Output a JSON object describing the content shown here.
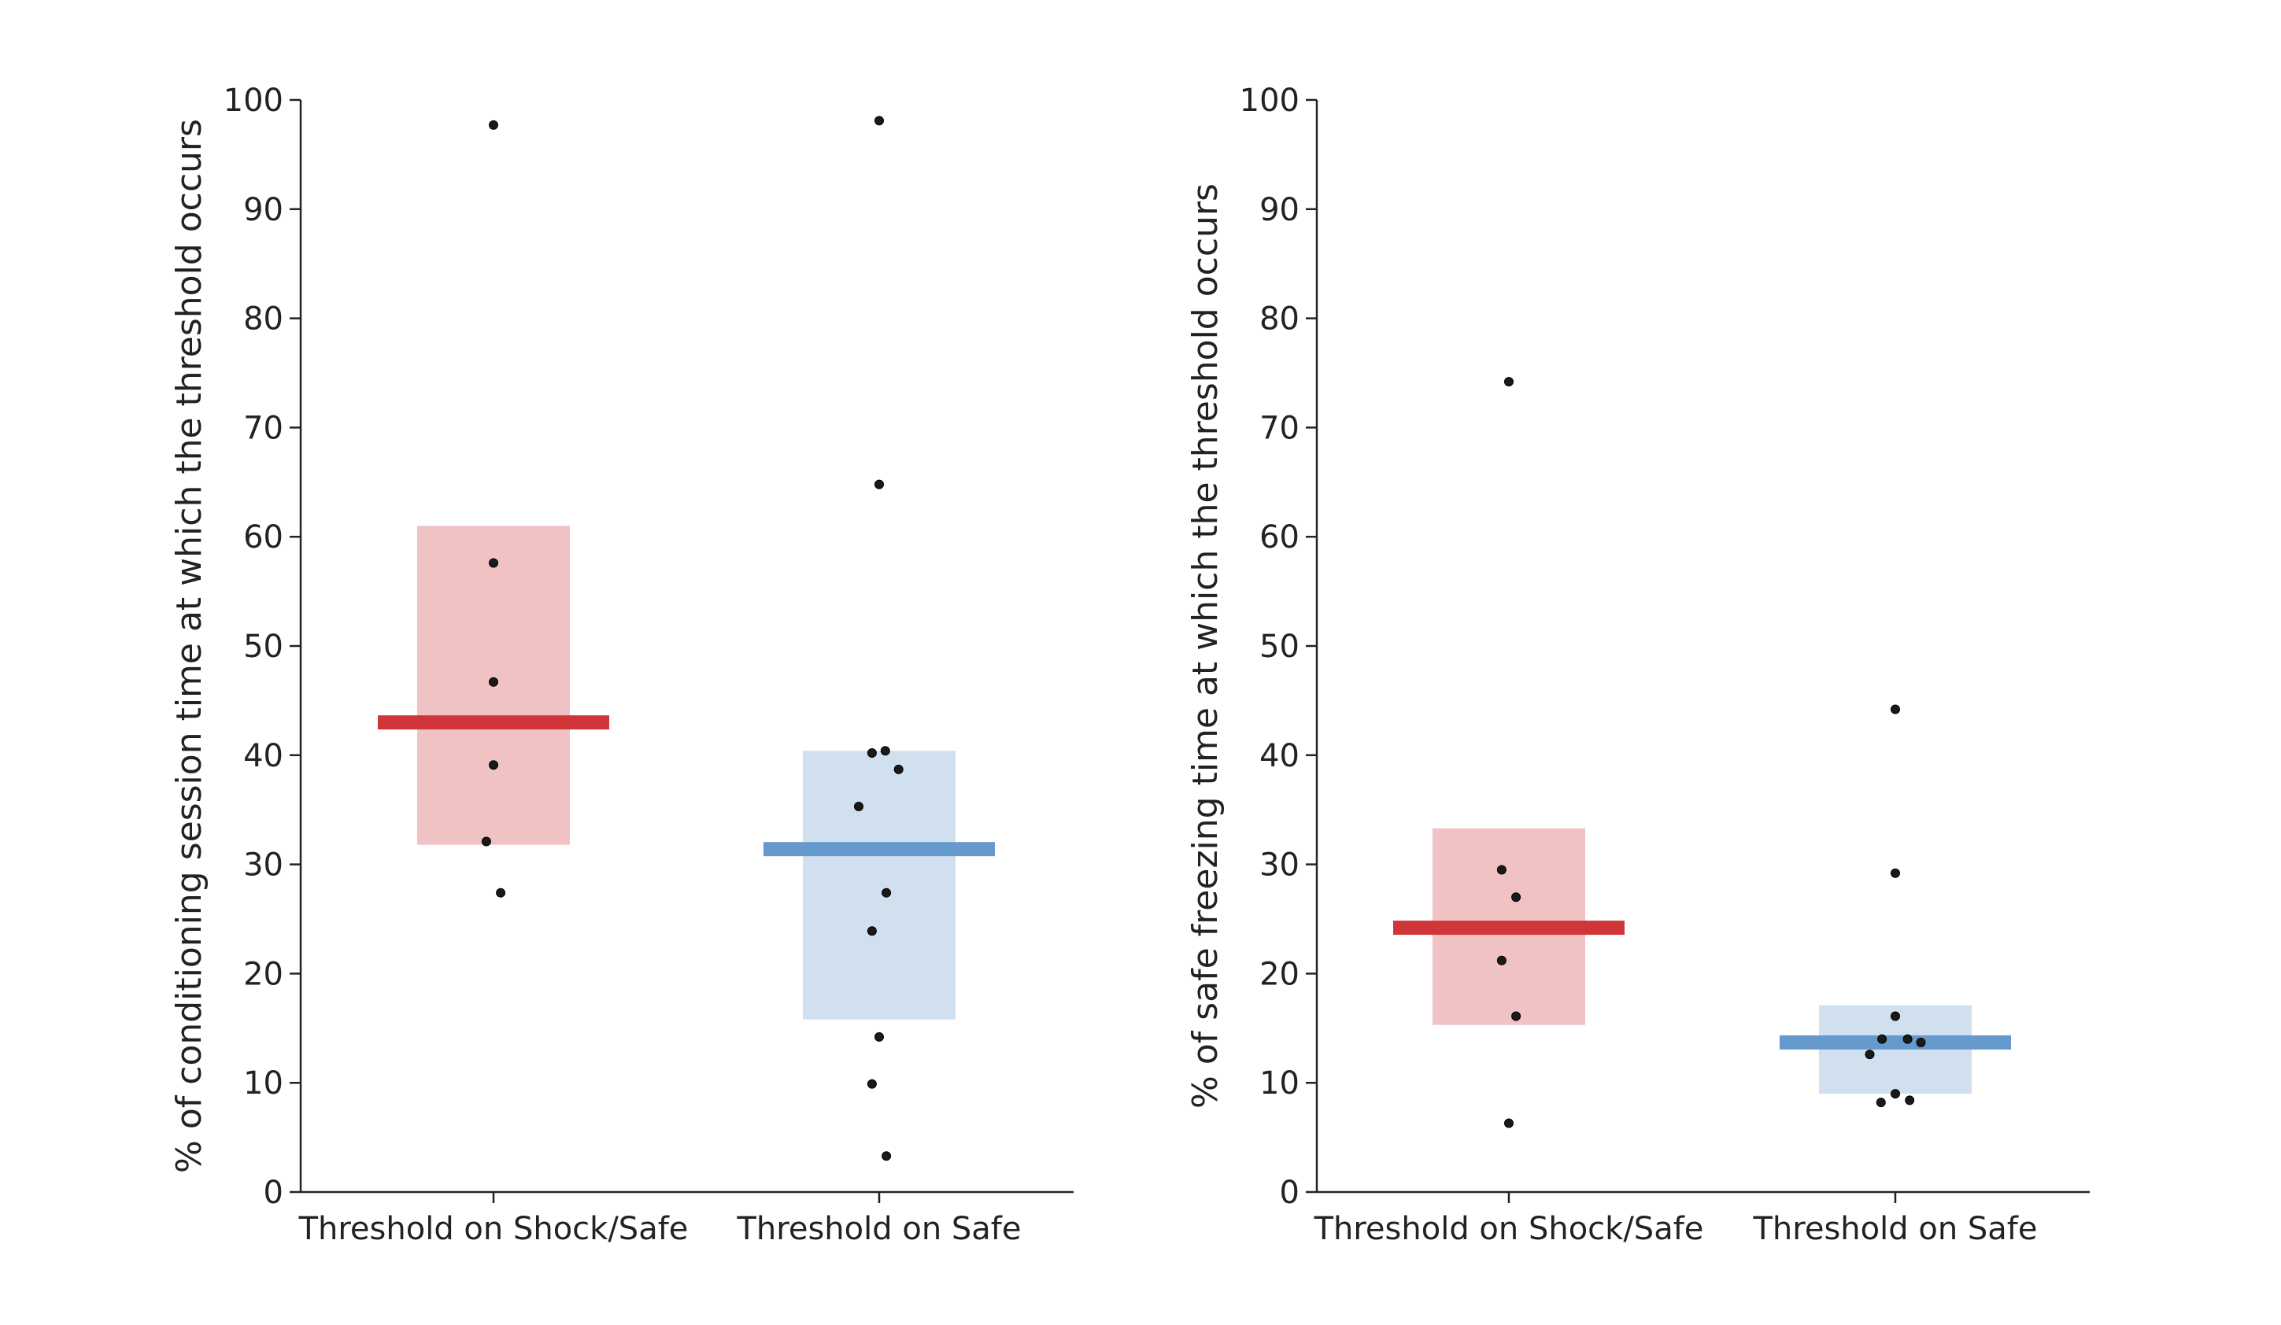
{
  "colors": {
    "shock_safe_mean": "#d0353a",
    "shock_safe_box": "#f0c2c3",
    "safe_mean": "#6699cc",
    "safe_box": "#d0e0ef",
    "point": "#1a1a1a",
    "axis": "#222222"
  },
  "chart_data": [
    {
      "type": "scatter",
      "title": "",
      "xlabel": "",
      "ylabel": "% of conditioning session time at which the threshold occurs",
      "ylim": [
        0,
        100
      ],
      "yticks": [
        0,
        10,
        20,
        30,
        40,
        50,
        60,
        70,
        80,
        90,
        100
      ],
      "ytick_labels": [
        "0",
        "10",
        "20",
        "30",
        "40",
        "50",
        "60",
        "70",
        "80",
        "90",
        "100"
      ],
      "categories": [
        "Threshold on Shock/Safe",
        "Threshold on Safe"
      ],
      "groups": [
        {
          "category": "Threshold on Shock/Safe",
          "color": "shock_safe",
          "mean": 43.0,
          "box": [
            31.8,
            61.0
          ],
          "points": [
            {
              "offset": 0.0,
              "value": 97.7
            },
            {
              "offset": 0.0,
              "value": 57.6
            },
            {
              "offset": 0.0,
              "value": 46.7
            },
            {
              "offset": 0.0,
              "value": 39.1
            },
            {
              "offset": -0.035,
              "value": 32.1
            },
            {
              "offset": 0.035,
              "value": 27.4
            }
          ]
        },
        {
          "category": "Threshold on Safe",
          "color": "safe",
          "mean": 31.4,
          "box": [
            15.8,
            40.4
          ],
          "points": [
            {
              "offset": 0.0,
              "value": 98.1
            },
            {
              "offset": 0.0,
              "value": 64.8
            },
            {
              "offset": -0.035,
              "value": 40.2
            },
            {
              "offset": 0.03,
              "value": 40.4
            },
            {
              "offset": 0.095,
              "value": 38.7
            },
            {
              "offset": -0.1,
              "value": 35.3
            },
            {
              "offset": 0.035,
              "value": 27.4
            },
            {
              "offset": -0.035,
              "value": 23.9
            },
            {
              "offset": 0.0,
              "value": 14.2
            },
            {
              "offset": -0.035,
              "value": 9.9
            },
            {
              "offset": 0.035,
              "value": 3.3
            }
          ]
        }
      ]
    },
    {
      "type": "scatter",
      "title": "",
      "xlabel": "",
      "ylabel": "% of safe freezing time at which the threshold occurs",
      "ylim": [
        0,
        100
      ],
      "yticks": [
        0,
        10,
        20,
        30,
        40,
        50,
        60,
        70,
        80,
        90,
        100
      ],
      "ytick_labels": [
        "0",
        "10",
        "20",
        "30",
        "40",
        "50",
        "60",
        "70",
        "80",
        "90",
        "100"
      ],
      "categories": [
        "Threshold on Shock/Safe",
        "Threshold on Safe"
      ],
      "groups": [
        {
          "category": "Threshold on Shock/Safe",
          "color": "shock_safe",
          "mean": 24.2,
          "box": [
            15.3,
            33.3
          ],
          "points": [
            {
              "offset": 0.0,
              "value": 74.2
            },
            {
              "offset": -0.035,
              "value": 29.5
            },
            {
              "offset": 0.035,
              "value": 27.0
            },
            {
              "offset": -0.035,
              "value": 21.2
            },
            {
              "offset": 0.035,
              "value": 16.1
            },
            {
              "offset": 0.0,
              "value": 6.3
            }
          ]
        },
        {
          "category": "Threshold on Safe",
          "color": "safe",
          "mean": 13.7,
          "box": [
            9.0,
            17.1
          ],
          "points": [
            {
              "offset": 0.0,
              "value": 44.2
            },
            {
              "offset": 0.0,
              "value": 29.2
            },
            {
              "offset": 0.0,
              "value": 16.1
            },
            {
              "offset": -0.065,
              "value": 14.0
            },
            {
              "offset": 0.06,
              "value": 14.0
            },
            {
              "offset": 0.125,
              "value": 13.7
            },
            {
              "offset": -0.125,
              "value": 12.6
            },
            {
              "offset": 0.0,
              "value": 9.0
            },
            {
              "offset": -0.07,
              "value": 8.2
            },
            {
              "offset": 0.07,
              "value": 8.4
            }
          ]
        }
      ]
    }
  ]
}
